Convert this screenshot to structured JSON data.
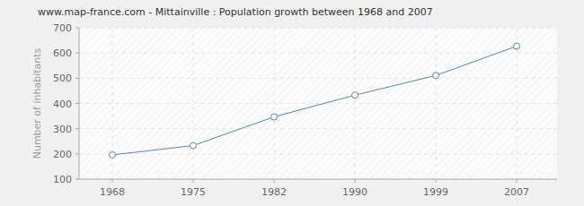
{
  "chart_data": {
    "type": "line",
    "title": "www.map-france.com - Mittainville : Population growth between 1968 and 2007",
    "y_label": "Number of inhabitants",
    "categories": [
      "1968",
      "1975",
      "1982",
      "1990",
      "1999",
      "2007"
    ],
    "values": [
      196,
      233,
      347,
      433,
      511,
      627
    ],
    "color": "#5a84b0",
    "marker": "circle",
    "ylim": [
      100,
      700
    ],
    "yticks": [
      100,
      200,
      300,
      400,
      500,
      600,
      700
    ],
    "grid": true
  }
}
